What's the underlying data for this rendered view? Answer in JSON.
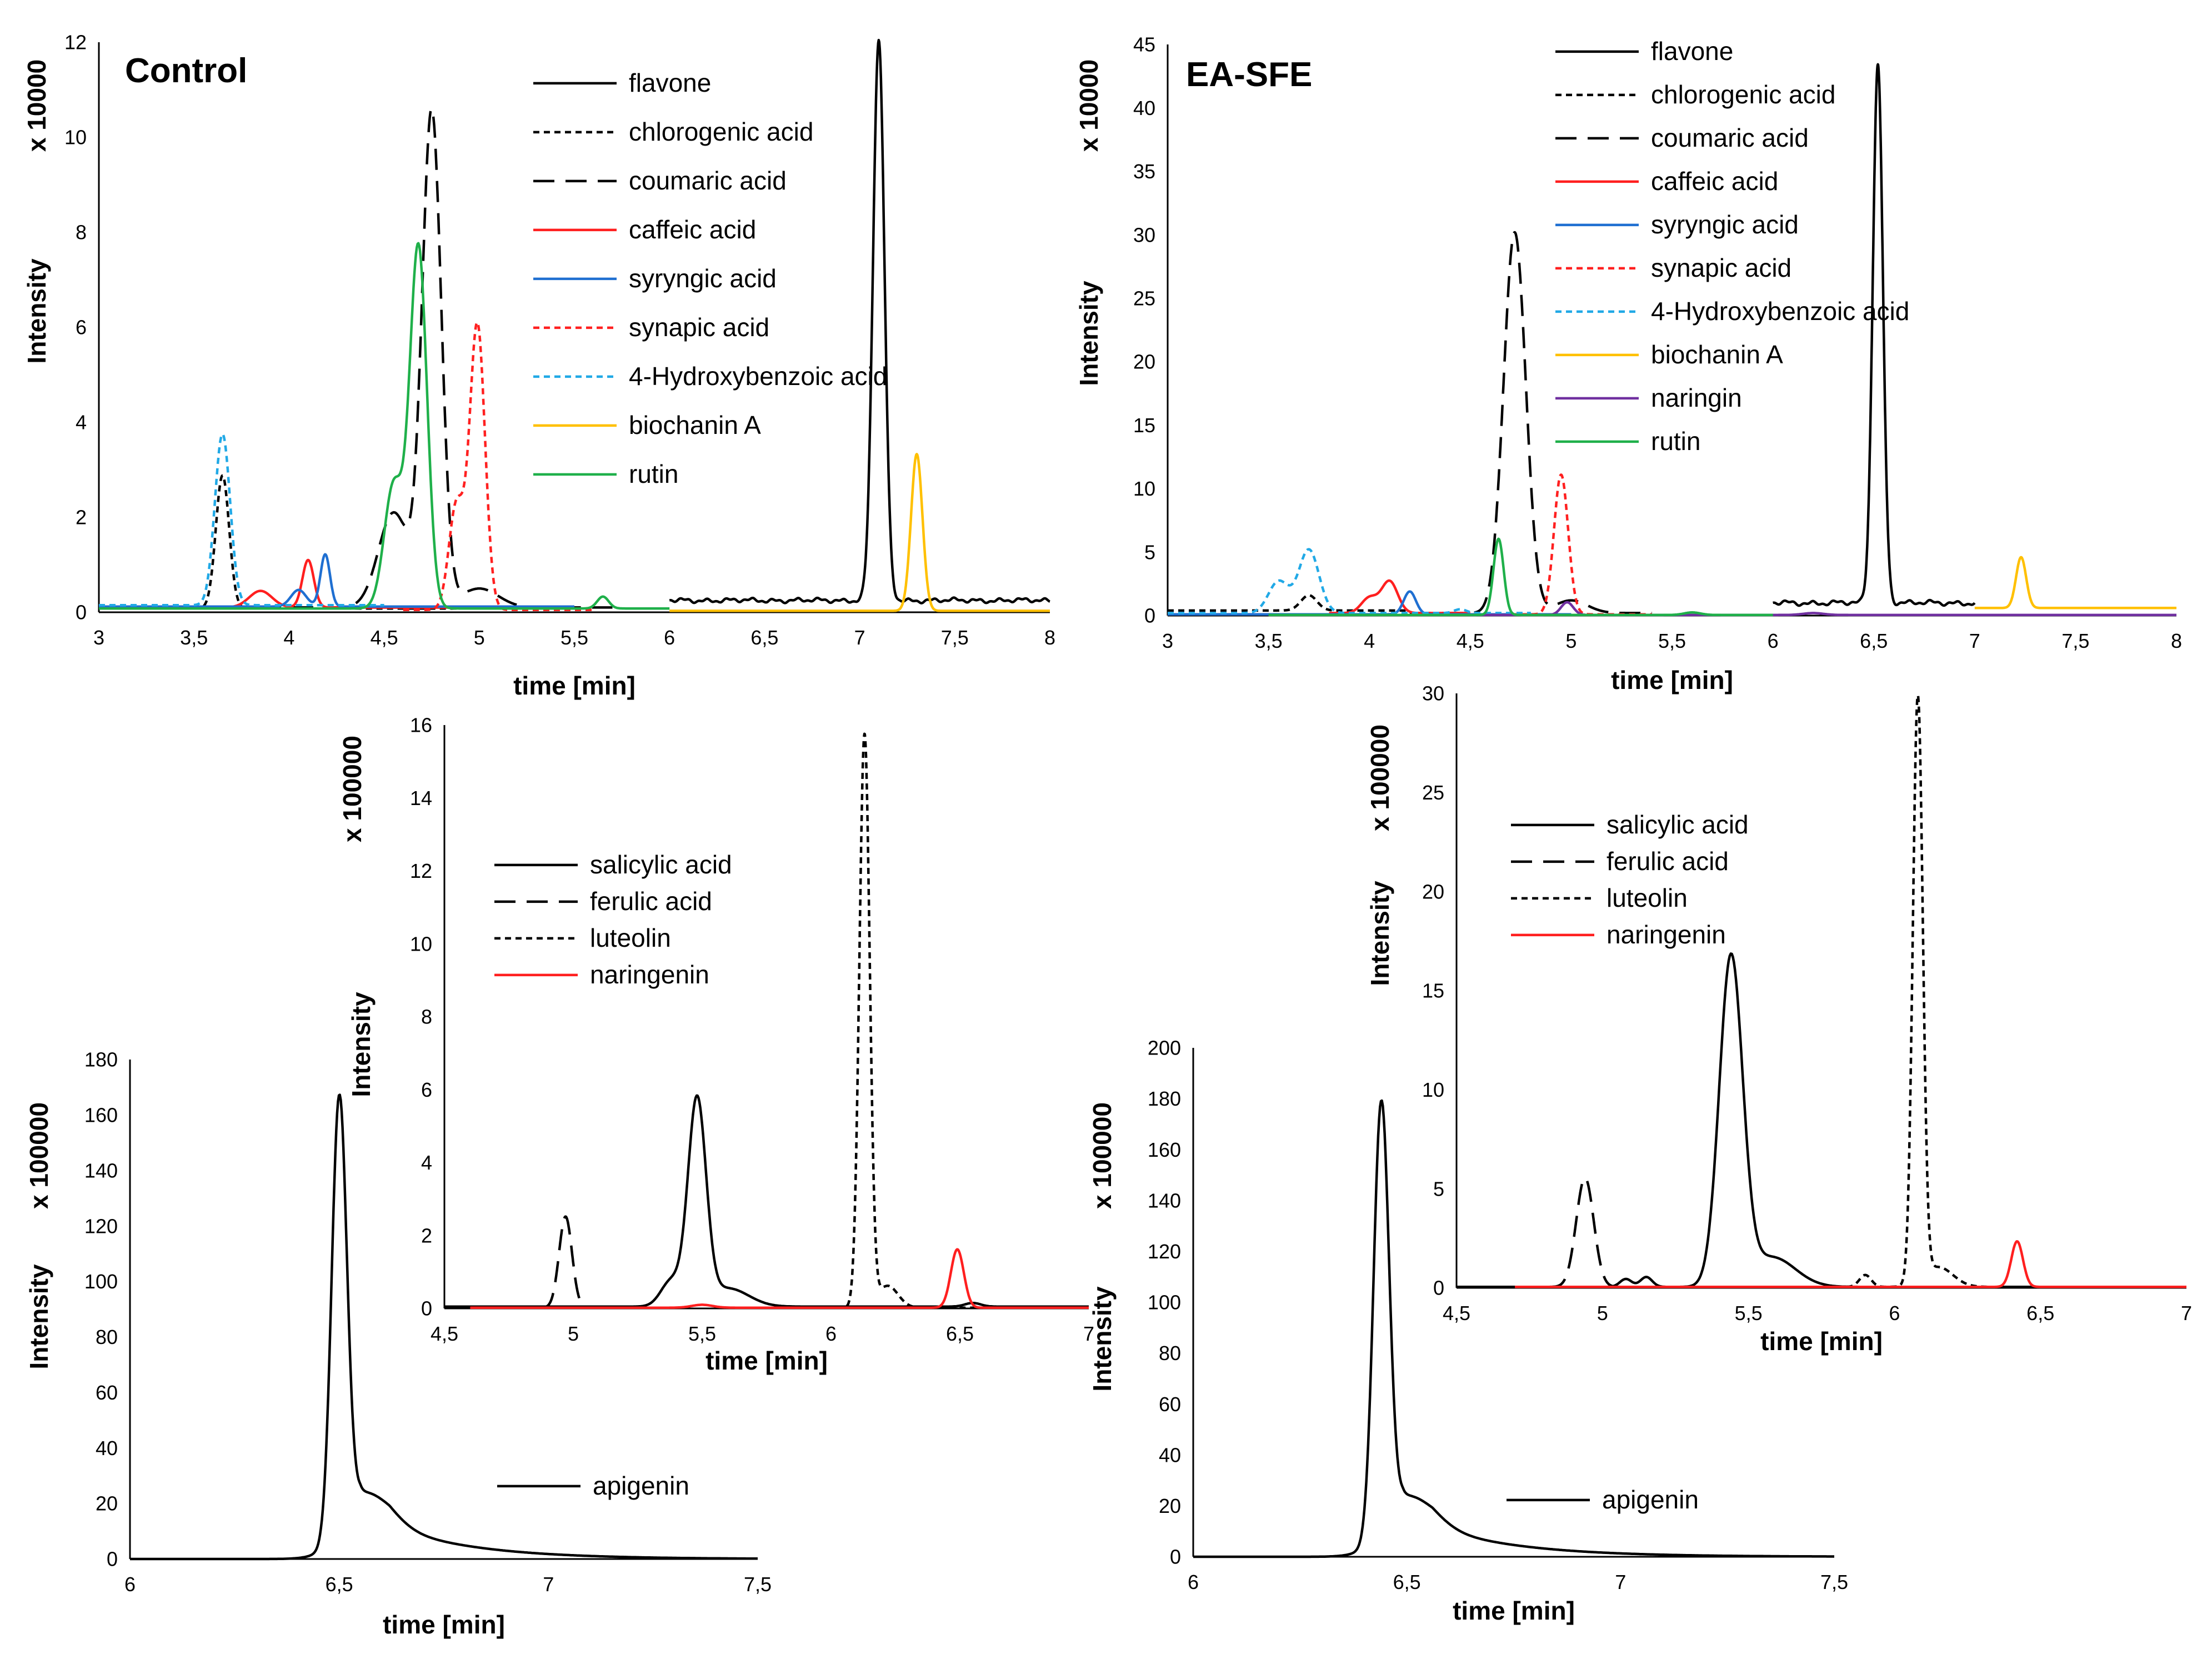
{
  "chart_data": [
    {
      "id": "control-main",
      "type": "line",
      "title": "Control",
      "xlabel": "time [min]",
      "ylabel": "Intensity",
      "yunit": "x 10000",
      "xlim": [
        3,
        8
      ],
      "ylim": [
        0,
        12
      ],
      "xticks": [
        3,
        3.5,
        4,
        4.5,
        5,
        5.5,
        6,
        6.5,
        7,
        7.5,
        8
      ],
      "yticks": [
        0,
        2,
        4,
        6,
        8,
        10,
        12
      ],
      "grid": false,
      "legend": "top-center",
      "series": [
        {
          "name": "flavone",
          "color": "#000000",
          "dash": "solid",
          "baseline": 0.25,
          "baseline_noise": 0.06,
          "start": 6.0,
          "end": 8.0,
          "peaks": [
            [
              7.1,
              11.8,
              0.03
            ]
          ]
        },
        {
          "name": "chlorogenic acid",
          "color": "#000000",
          "dash": "short",
          "baseline": 0.08,
          "start": 3.0,
          "end": 5.0,
          "peaks": [
            [
              3.65,
              2.8,
              0.035
            ]
          ]
        },
        {
          "name": "coumaric acid",
          "color": "#000000",
          "dash": "long",
          "baseline": 0.1,
          "start": 3.0,
          "end": 5.7,
          "peaks": [
            [
              4.75,
              10.4,
              0.05
            ],
            [
              4.55,
              2.0,
              0.08
            ],
            [
              5.0,
              0.4,
              0.1
            ]
          ]
        },
        {
          "name": "caffeic acid",
          "color": "#ff1f1f",
          "dash": "solid",
          "baseline": 0.1,
          "start": 3.0,
          "end": 5.5,
          "peaks": [
            [
              4.1,
              1.0,
              0.03
            ],
            [
              3.85,
              0.35,
              0.06
            ]
          ]
        },
        {
          "name": "syryngic acid",
          "color": "#1f6fd1",
          "dash": "solid",
          "baseline": 0.12,
          "start": 3.0,
          "end": 5.5,
          "peaks": [
            [
              4.19,
              1.1,
              0.025
            ],
            [
              4.05,
              0.35,
              0.04
            ]
          ]
        },
        {
          "name": "synapic acid",
          "color": "#ff2020",
          "dash": "short",
          "baseline": 0.05,
          "start": 4.6,
          "end": 5.6,
          "peaks": [
            [
              4.99,
              6.0,
              0.04
            ],
            [
              4.88,
              2.2,
              0.04
            ]
          ]
        },
        {
          "name": "4-Hydroxybenzoic acid",
          "color": "#21a9e6",
          "dash": "short",
          "baseline": 0.15,
          "start": 3.0,
          "end": 4.5,
          "peaks": [
            [
              3.65,
              3.6,
              0.04
            ]
          ]
        },
        {
          "name": "biochanin A",
          "color": "#ffc000",
          "dash": "solid",
          "baseline": 0.03,
          "start": 6.0,
          "end": 8.0,
          "peaks": [
            [
              7.3,
              3.3,
              0.03
            ]
          ]
        },
        {
          "name": "rutin",
          "color": "#1fb04a",
          "dash": "solid",
          "baseline": 0.08,
          "start": 3.0,
          "end": 6.0,
          "peaks": [
            [
              4.68,
              7.6,
              0.045
            ],
            [
              4.55,
              2.6,
              0.05
            ],
            [
              5.65,
              0.25,
              0.03
            ]
          ]
        }
      ]
    },
    {
      "id": "easfe-main",
      "type": "line",
      "title": "EA-SFE",
      "xlabel": "time [min]",
      "ylabel": "Intensity",
      "yunit": "x 10000",
      "xlim": [
        3,
        8
      ],
      "ylim": [
        0,
        45
      ],
      "xticks": [
        3,
        3.5,
        4,
        4.5,
        5,
        5.5,
        6,
        6.5,
        7,
        7.5,
        8
      ],
      "yticks": [
        0,
        5,
        10,
        15,
        20,
        25,
        30,
        35,
        40,
        45
      ],
      "grid": false,
      "legend": "top-center",
      "series": [
        {
          "name": "flavone",
          "color": "#000000",
          "dash": "solid",
          "baseline": 1.0,
          "baseline_noise": 0.25,
          "start": 6.0,
          "end": 7.0,
          "peaks": [
            [
              6.52,
              42.5,
              0.025
            ]
          ]
        },
        {
          "name": "chlorogenic acid",
          "color": "#000000",
          "dash": "short",
          "baseline": 0.4,
          "start": 3.0,
          "end": 4.2,
          "peaks": [
            [
              3.7,
              1.2,
              0.04
            ]
          ]
        },
        {
          "name": "coumaric acid",
          "color": "#000000",
          "dash": "long",
          "baseline": 0.2,
          "start": 4.2,
          "end": 5.4,
          "peaks": [
            [
              4.72,
              30.0,
              0.055
            ],
            [
              5.0,
              1.0,
              0.08
            ]
          ]
        },
        {
          "name": "caffeic acid",
          "color": "#ff1f1f",
          "dash": "solid",
          "baseline": 0.2,
          "start": 3.8,
          "end": 4.5,
          "peaks": [
            [
              4.1,
              2.5,
              0.04
            ],
            [
              4.0,
              1.2,
              0.04
            ]
          ]
        },
        {
          "name": "syryngic acid",
          "color": "#1f6fd1",
          "dash": "solid",
          "baseline": 0.1,
          "start": 3.0,
          "end": 5.0,
          "peaks": [
            [
              4.2,
              1.8,
              0.03
            ]
          ]
        },
        {
          "name": "synapic acid",
          "color": "#ff2020",
          "dash": "short",
          "baseline": 0.1,
          "start": 4.7,
          "end": 5.4,
          "peaks": [
            [
              4.95,
              11.0,
              0.035
            ]
          ]
        },
        {
          "name": "4-Hydroxybenzoic acid",
          "color": "#21a9e6",
          "dash": "short",
          "baseline": 0.2,
          "start": 3.0,
          "end": 4.8,
          "peaks": [
            [
              3.7,
              5.0,
              0.05
            ],
            [
              3.55,
              2.5,
              0.05
            ],
            [
              4.45,
              0.3,
              0.03
            ]
          ]
        },
        {
          "name": "biochanin A",
          "color": "#ffc000",
          "dash": "solid",
          "baseline": 0.6,
          "start": 7.0,
          "end": 8.0,
          "peaks": [
            [
              7.23,
              4.0,
              0.025
            ]
          ]
        },
        {
          "name": "naringin",
          "color": "#7030a0",
          "dash": "solid",
          "baseline": 0.05,
          "start": 4.5,
          "end": 8.0,
          "peaks": [
            [
              4.98,
              1.0,
              0.03
            ],
            [
              6.2,
              0.15,
              0.05
            ]
          ]
        },
        {
          "name": "rutin",
          "color": "#1fb04a",
          "dash": "solid",
          "baseline": 0.05,
          "start": 3.5,
          "end": 6.0,
          "peaks": [
            [
              4.64,
              6.0,
              0.025
            ],
            [
              5.6,
              0.2,
              0.04
            ]
          ]
        }
      ]
    },
    {
      "id": "control-inset",
      "type": "line",
      "xlabel": "time [min]",
      "ylabel": "Intensity",
      "yunit": "x 100000",
      "xlim": [
        4.5,
        7
      ],
      "ylim": [
        0,
        16
      ],
      "xticks": [
        4.5,
        5,
        5.5,
        6,
        6.5,
        7
      ],
      "yticks": [
        0,
        2,
        4,
        6,
        8,
        10,
        12,
        14,
        16
      ],
      "grid": false,
      "legend": "top-left",
      "series": [
        {
          "name": "salicylic acid",
          "color": "#000000",
          "dash": "solid",
          "baseline": 0.05,
          "start": 4.5,
          "end": 7.0,
          "peaks": [
            [
              5.48,
              5.6,
              0.035
            ],
            [
              5.38,
              0.7,
              0.04
            ],
            [
              5.6,
              0.5,
              0.08
            ],
            [
              6.55,
              0.1,
              0.03
            ]
          ]
        },
        {
          "name": "ferulic acid",
          "color": "#000000",
          "dash": "long",
          "baseline": 0.02,
          "start": 4.5,
          "end": 5.2,
          "peaks": [
            [
              4.97,
              2.5,
              0.025
            ]
          ]
        },
        {
          "name": "luteolin",
          "color": "#000000",
          "dash": "short",
          "baseline": 0.02,
          "start": 5.9,
          "end": 7.0,
          "peaks": [
            [
              6.13,
              15.7,
              0.02
            ],
            [
              6.22,
              0.6,
              0.04
            ]
          ]
        },
        {
          "name": "naringenin",
          "color": "#ff1f1f",
          "dash": "solid",
          "baseline": 0.02,
          "start": 4.6,
          "end": 7.0,
          "peaks": [
            [
              6.49,
              1.6,
              0.025
            ],
            [
              5.5,
              0.08,
              0.04
            ]
          ]
        }
      ]
    },
    {
      "id": "easfe-inset",
      "type": "line",
      "xlabel": "time [min]",
      "ylabel": "Intensity",
      "yunit": "x 100000",
      "xlim": [
        4.5,
        7
      ],
      "ylim": [
        0,
        30
      ],
      "xticks": [
        4.5,
        5,
        5.5,
        6,
        6.5,
        7
      ],
      "yticks": [
        0,
        5,
        10,
        15,
        20,
        25,
        30
      ],
      "grid": false,
      "legend": "top-left",
      "series": [
        {
          "name": "salicylic acid",
          "color": "#000000",
          "dash": "solid",
          "baseline": 0.05,
          "start": 4.5,
          "end": 7.0,
          "peaks": [
            [
              5.44,
              16.5,
              0.04
            ],
            [
              5.58,
              1.5,
              0.08
            ],
            [
              5.15,
              0.5,
              0.02
            ],
            [
              5.08,
              0.4,
              0.02
            ]
          ]
        },
        {
          "name": "ferulic acid",
          "color": "#000000",
          "dash": "long",
          "baseline": 0.05,
          "start": 4.7,
          "end": 5.3,
          "peaks": [
            [
              4.94,
              5.5,
              0.03
            ]
          ]
        },
        {
          "name": "luteolin",
          "color": "#000000",
          "dash": "short",
          "baseline": 0.05,
          "start": 5.8,
          "end": 7.0,
          "peaks": [
            [
              6.08,
              29.5,
              0.017
            ],
            [
              6.15,
              1.0,
              0.05
            ],
            [
              5.9,
              0.6,
              0.02
            ]
          ]
        },
        {
          "name": "naringenin",
          "color": "#ff1f1f",
          "dash": "solid",
          "baseline": 0.05,
          "start": 4.7,
          "end": 7.0,
          "peaks": [
            [
              6.42,
              2.3,
              0.02
            ]
          ]
        }
      ]
    },
    {
      "id": "control-apigenin",
      "type": "line",
      "xlabel": "time [min]",
      "ylabel": "Intensity",
      "yunit": "x 100000",
      "xlim": [
        6,
        7.5
      ],
      "ylim": [
        0,
        180
      ],
      "xticks": [
        6,
        6.5,
        7,
        7.5
      ],
      "yticks": [
        0,
        20,
        40,
        60,
        80,
        100,
        120,
        140,
        160,
        180
      ],
      "grid": false,
      "legend": "bottom-center",
      "series": [
        {
          "name": "apigenin",
          "color": "#000000",
          "dash": "solid",
          "baseline": 0.0,
          "start": 6.0,
          "end": 7.5,
          "peaks": [
            [
              6.5,
              160,
              0.018
            ],
            [
              6.56,
              12,
              0.06
            ]
          ],
          "tail": [
            12,
            0.2
          ]
        }
      ]
    },
    {
      "id": "easfe-apigenin",
      "type": "line",
      "xlabel": "time [min]",
      "ylabel": "Intensity",
      "yunit": "x 100000",
      "xlim": [
        6,
        7.5
      ],
      "ylim": [
        0,
        200
      ],
      "xticks": [
        6,
        6.5,
        7,
        7.5
      ],
      "yticks": [
        0,
        20,
        40,
        60,
        80,
        100,
        120,
        140,
        160,
        180,
        200
      ],
      "grid": false,
      "legend": "bottom-center",
      "series": [
        {
          "name": "apigenin",
          "color": "#000000",
          "dash": "solid",
          "baseline": 0.0,
          "start": 6.0,
          "end": 7.5,
          "peaks": [
            [
              6.44,
              172,
              0.018
            ],
            [
              6.5,
              12,
              0.06
            ]
          ],
          "tail": [
            12,
            0.2
          ]
        }
      ]
    }
  ]
}
